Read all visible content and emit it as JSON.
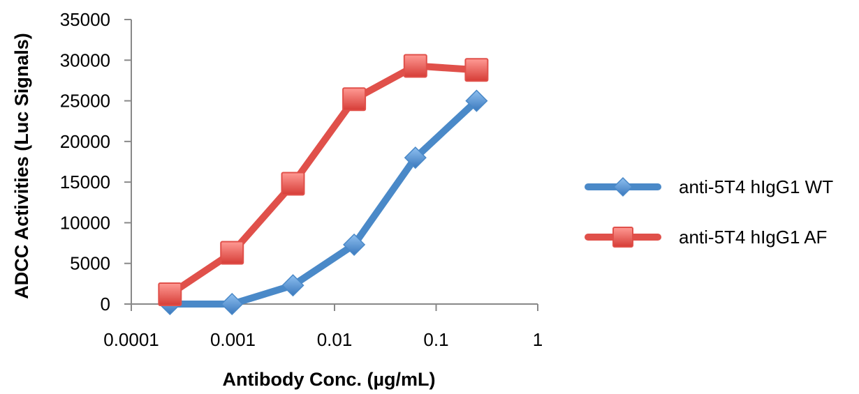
{
  "chart_data": {
    "type": "line",
    "title": "",
    "xlabel": "Antibody Conc. (µg/mL)",
    "ylabel": "ADCC Activities (Luc Signals)",
    "xscale": "log",
    "xlim": [
      0.0001,
      1
    ],
    "ylim": [
      0,
      35000
    ],
    "x_ticks": [
      0.0001,
      0.001,
      0.01,
      0.1,
      1
    ],
    "x_tick_labels": [
      "0.0001",
      "0.001",
      "0.01",
      "0.1",
      "1"
    ],
    "y_ticks": [
      0,
      5000,
      10000,
      15000,
      20000,
      25000,
      30000,
      35000
    ],
    "y_tick_labels": [
      "0",
      "5000",
      "10000",
      "15000",
      "20000",
      "25000",
      "30000",
      "35000"
    ],
    "grid": false,
    "legend_position": "right",
    "series": [
      {
        "name": "anti-5T4 hIgG1 WT",
        "color": "#4a89c8",
        "marker": "diamond",
        "x": [
          0.00024,
          0.00098,
          0.0039,
          0.0156,
          0.0625,
          0.25
        ],
        "y": [
          0,
          0,
          2300,
          7300,
          18000,
          25000
        ]
      },
      {
        "name": "anti-5T4 hIgG1 AF",
        "color": "#e0504a",
        "marker": "square",
        "x": [
          0.00024,
          0.00098,
          0.0039,
          0.0156,
          0.0625,
          0.25
        ],
        "y": [
          1200,
          6300,
          14800,
          25200,
          29300,
          28800
        ]
      }
    ]
  }
}
